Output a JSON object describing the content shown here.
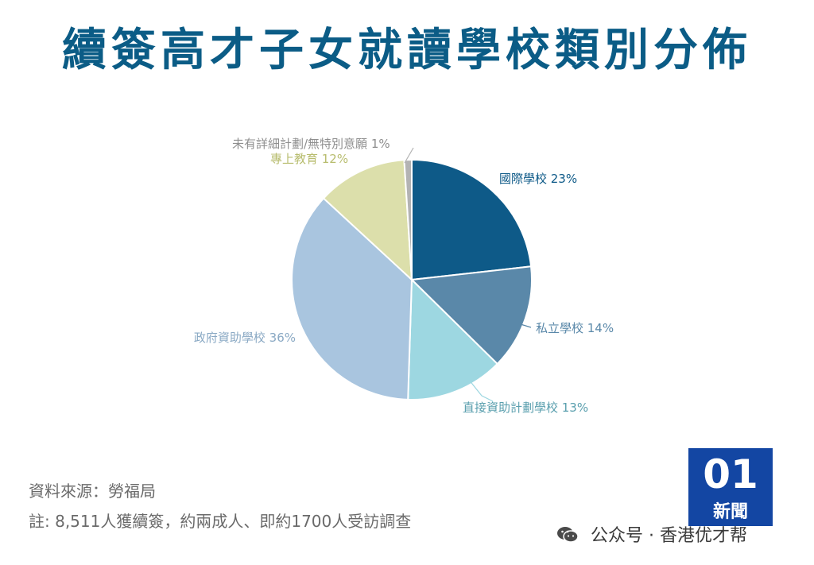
{
  "title": "續簽高才子女就讀學校類別分佈",
  "chart_data": {
    "type": "pie",
    "title": "續簽高才子女就讀學校類別分佈",
    "start_angle_deg": 0,
    "direction": "clockwise",
    "slices": [
      {
        "label": "國際學校",
        "value": 23,
        "display": "23%",
        "color": "#0e5a88"
      },
      {
        "label": "私立學校",
        "value": 14,
        "display": "14%",
        "color": "#5a88a9"
      },
      {
        "label": "直接資助計劃學校",
        "value": 13,
        "display": "13%",
        "color": "#9dd7e1"
      },
      {
        "label": "政府資助學校",
        "value": 36,
        "display": "36%",
        "color": "#a9c5df"
      },
      {
        "label": "專上教育",
        "value": 12,
        "display": "12%",
        "color": "#dcdfab"
      },
      {
        "label": "未有詳細計劃/無特別意願",
        "value": 1,
        "display": "1%",
        "color": "#b3b3b3"
      }
    ]
  },
  "footer": {
    "source": "資料來源：勞福局",
    "note": "註: 8,511人獲續簽，約兩成人、即約1700人受訪調查"
  },
  "logo": {
    "mark": "01",
    "text": "新聞",
    "color": "#1346a3"
  },
  "watermark": {
    "icon": "wechat-icon",
    "text": "公众号 · 香港优才帮"
  }
}
